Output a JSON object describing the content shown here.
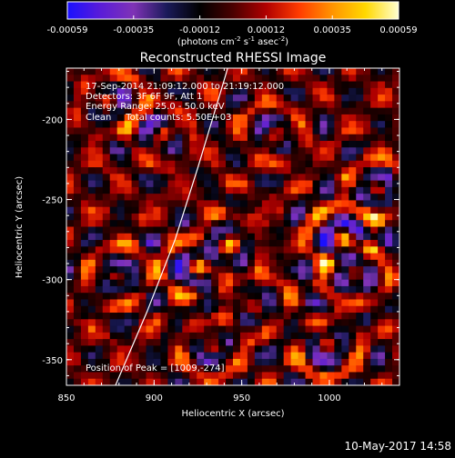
{
  "chart_data": {
    "type": "heatmap",
    "title": "Reconstructed RHESSI Image",
    "xlabel": "Heliocentric X (arcsec)",
    "ylabel": "Heliocentric Y (arcsec)",
    "xlim": [
      850,
      1040
    ],
    "ylim": [
      -366,
      -168
    ],
    "x_ticks": [
      850,
      900,
      950,
      1000
    ],
    "y_ticks": [
      -200,
      -250,
      -300,
      -350
    ],
    "colorbar": {
      "ticks": [
        "-0.00059",
        "-0.00035",
        "-0.00012",
        "0.00012",
        "0.00035",
        "0.00059"
      ],
      "unit_prefix": "(photons cm",
      "unit_exp1": "-2",
      "unit_mid": " s",
      "unit_exp2": "-1",
      "unit_mid2": " asec",
      "unit_exp3": "-2",
      "unit_suffix": ")",
      "colors": [
        "#1a10ff",
        "#5a1cd8",
        "#7f33b6",
        "#1a1a5a",
        "#000000",
        "#4a0000",
        "#b00000",
        "#ff3c00",
        "#ff9400",
        "#ffd800",
        "#ffffd0"
      ]
    },
    "annotations": [
      "17-Sep-2014 21:09:12.000 to 21:19:12.000",
      "Detectors: 3F 6F 9F, Att 1",
      "Energy Range: 25.0 - 50.0 keV",
      "Clean     Total counts: 5.50E+03"
    ],
    "peak_label": "Position of Peak = [1009,-274]",
    "peak": [
      1009,
      -274
    ],
    "limb_curve": [
      [
        878,
        -366
      ],
      [
        896,
        -320
      ],
      [
        912,
        -275
      ],
      [
        925,
        -230
      ],
      [
        936,
        -190
      ],
      [
        942,
        -168
      ]
    ],
    "sources": [
      {
        "x": 1010,
        "y": -275,
        "s": 1.0
      },
      {
        "x": 1018,
        "y": -300,
        "s": 0.9
      },
      {
        "x": 1002,
        "y": -345,
        "s": 0.8
      },
      {
        "x": 1030,
        "y": -245,
        "s": 0.7
      },
      {
        "x": 925,
        "y": -295,
        "s": 0.8
      },
      {
        "x": 945,
        "y": -280,
        "s": 0.7
      },
      {
        "x": 935,
        "y": -345,
        "s": 0.6
      },
      {
        "x": 880,
        "y": -300,
        "s": 0.7
      },
      {
        "x": 905,
        "y": -210,
        "s": 0.6
      },
      {
        "x": 875,
        "y": -190,
        "s": 0.6
      },
      {
        "x": 970,
        "y": -210,
        "s": 0.6
      },
      {
        "x": 960,
        "y": -320,
        "s": 0.5
      }
    ]
  },
  "footer": {
    "timestamp": "10-May-2017 14:58"
  }
}
